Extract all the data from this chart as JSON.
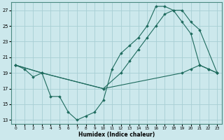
{
  "xlabel": "Humidex (Indice chaleur)",
  "bg_color": "#cce8ec",
  "grid_color": "#a8ced4",
  "line_color": "#1e6b5e",
  "xlim": [
    -0.5,
    23.5
  ],
  "ylim": [
    12.5,
    28
  ],
  "yticks": [
    13,
    15,
    17,
    19,
    21,
    23,
    25,
    27
  ],
  "xticks": [
    0,
    1,
    2,
    3,
    4,
    5,
    6,
    7,
    8,
    9,
    10,
    11,
    12,
    13,
    14,
    15,
    16,
    17,
    18,
    19,
    20,
    21,
    22,
    23
  ],
  "line1_x": [
    0,
    1,
    2,
    3,
    4,
    5,
    6,
    7,
    8,
    9,
    10,
    11,
    12,
    13,
    14,
    15,
    16,
    17,
    18,
    19,
    20,
    21,
    22,
    23
  ],
  "line1_y": [
    20.0,
    19.5,
    18.5,
    19.0,
    16.0,
    16.0,
    14.0,
    13.0,
    13.5,
    14.0,
    15.5,
    19.5,
    21.5,
    22.5,
    23.5,
    25.0,
    27.5,
    27.5,
    27.0,
    25.5,
    24.0,
    20.0,
    19.5,
    19.0
  ],
  "line2_x": [
    0,
    3,
    10,
    12,
    13,
    14,
    15,
    16,
    17,
    18,
    19,
    20,
    21,
    23
  ],
  "line2_y": [
    20.0,
    19.0,
    17.0,
    19.0,
    20.5,
    22.0,
    23.5,
    25.0,
    26.5,
    27.0,
    27.0,
    25.5,
    24.5,
    19.0
  ],
  "line3_x": [
    0,
    3,
    10,
    19,
    20,
    21,
    22,
    23
  ],
  "line3_y": [
    20.0,
    19.0,
    17.0,
    19.0,
    19.5,
    20.0,
    19.5,
    19.0
  ]
}
